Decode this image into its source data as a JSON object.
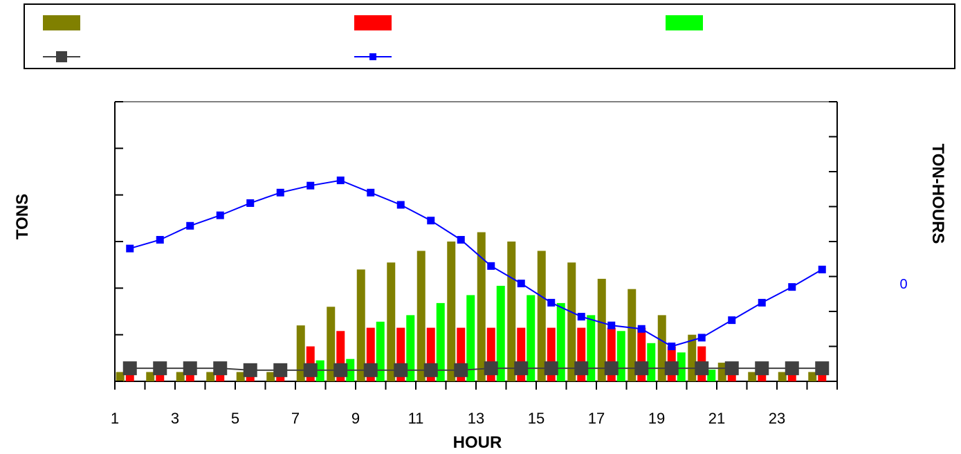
{
  "chart_data": {
    "type": "bar",
    "title": "",
    "xlabel": "HOUR",
    "ylabel": "TONS",
    "y2label": "TON-HOURS",
    "y2_annotation": "0",
    "x_tick_labels": [
      "1",
      "3",
      "5",
      "7",
      "9",
      "11",
      "13",
      "15",
      "17",
      "19",
      "21",
      "23"
    ],
    "x": [
      1,
      2,
      3,
      4,
      5,
      6,
      7,
      8,
      9,
      10,
      11,
      12,
      13,
      14,
      15,
      16,
      17,
      18,
      19,
      20,
      21,
      22,
      23,
      24
    ],
    "ylim": [
      0,
      6
    ],
    "y2lim": [
      -4,
      4
    ],
    "series": [
      {
        "kind": "bar",
        "color": "#808000",
        "values": [
          0.2,
          0.2,
          0.2,
          0.2,
          0.2,
          0.2,
          1.2,
          1.6,
          2.4,
          2.55,
          2.8,
          3.0,
          3.2,
          3.0,
          2.8,
          2.55,
          2.2,
          1.98,
          1.42,
          1.0,
          0.4,
          0.2,
          0.2,
          0.2
        ]
      },
      {
        "kind": "bar",
        "color": "#ff0000",
        "values": [
          0.2,
          0.2,
          0.2,
          0.2,
          0.2,
          0.2,
          0.75,
          1.08,
          1.15,
          1.15,
          1.15,
          1.15,
          1.15,
          1.15,
          1.15,
          1.15,
          1.15,
          1.15,
          0.75,
          0.75,
          0.4,
          0.2,
          0.2,
          0.2
        ]
      },
      {
        "kind": "bar",
        "color": "#00ff00",
        "values": [
          0,
          0,
          0,
          0,
          0,
          0,
          0.45,
          0.48,
          1.28,
          1.42,
          1.68,
          1.85,
          2.05,
          1.85,
          1.68,
          1.42,
          1.08,
          0.82,
          0.62,
          0.25,
          0,
          0,
          0,
          0
        ]
      },
      {
        "kind": "line",
        "color": "#404040",
        "marker": "square-large",
        "axis": "left",
        "values": [
          0.28,
          0.28,
          0.28,
          0.28,
          0.24,
          0.24,
          0.24,
          0.24,
          0.24,
          0.24,
          0.24,
          0.24,
          0.28,
          0.28,
          0.28,
          0.28,
          0.28,
          0.28,
          0.28,
          0.28,
          0.28,
          0.28,
          0.28,
          0.28
        ]
      },
      {
        "kind": "line",
        "color": "#0000ff",
        "marker": "square-small",
        "axis": "right",
        "values": [
          -0.2,
          0.05,
          0.45,
          0.75,
          1.1,
          1.4,
          1.6,
          1.75,
          1.4,
          1.05,
          0.6,
          0.05,
          -0.7,
          -1.2,
          -1.75,
          -2.15,
          -2.4,
          -2.5,
          -3.0,
          -2.75,
          -2.25,
          -1.75,
          -1.3,
          -0.8
        ]
      }
    ]
  }
}
